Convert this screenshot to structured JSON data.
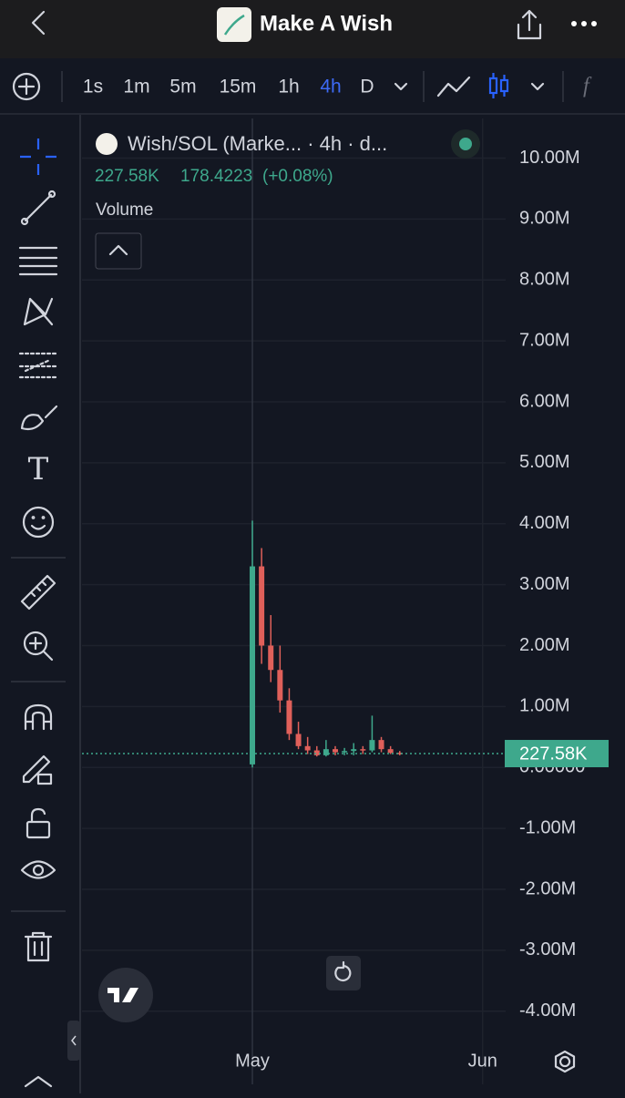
{
  "header": {
    "title": "Make A Wish"
  },
  "toolbar": {
    "intervals": [
      "1s",
      "1m",
      "5m",
      "15m",
      "1h",
      "4h",
      "D"
    ],
    "active_interval": 5
  },
  "chart_data": {
    "type": "candlestick",
    "title": "Wish/SOL (Marke... · 4h · d...",
    "legend": {
      "price": "227.58K",
      "change": "178.4223",
      "change_pct": "(+0.08%)"
    },
    "pane_label": "Volume",
    "categories": [
      null,
      null,
      null,
      null,
      null,
      null,
      null,
      null,
      null,
      null,
      null,
      null,
      null,
      null,
      null,
      null,
      null,
      null,
      "May",
      null,
      null,
      null,
      null,
      null,
      null,
      null,
      null,
      null,
      null,
      null,
      null,
      null,
      null,
      null,
      null,
      null,
      null,
      null,
      null,
      null,
      null,
      null,
      null,
      "Jun",
      null,
      null
    ],
    "open": [
      null,
      null,
      null,
      null,
      null,
      null,
      null,
      null,
      null,
      null,
      null,
      null,
      null,
      null,
      null,
      null,
      null,
      null,
      50000,
      3300000,
      2000000,
      1600000,
      1100000,
      550000,
      350000,
      280000,
      200000,
      300000,
      250000,
      270000,
      300000,
      280000,
      450000,
      300000,
      240000,
      null,
      null,
      null,
      null,
      null,
      null,
      null,
      null,
      null,
      null,
      null
    ],
    "high": [
      null,
      null,
      null,
      null,
      null,
      null,
      null,
      null,
      null,
      null,
      null,
      null,
      null,
      null,
      null,
      null,
      null,
      null,
      4050000,
      3600000,
      2500000,
      2000000,
      1300000,
      750000,
      500000,
      350000,
      450000,
      350000,
      320000,
      400000,
      350000,
      850000,
      500000,
      350000,
      270000,
      null,
      null,
      null,
      null,
      null,
      null,
      null,
      null,
      null,
      null,
      null
    ],
    "low": [
      null,
      null,
      null,
      null,
      null,
      null,
      null,
      null,
      null,
      null,
      null,
      null,
      null,
      null,
      null,
      null,
      null,
      null,
      0,
      1700000,
      1400000,
      900000,
      450000,
      300000,
      220000,
      180000,
      180000,
      200000,
      200000,
      200000,
      220000,
      250000,
      250000,
      220000,
      200000,
      null,
      null,
      null,
      null,
      null,
      null,
      null,
      null,
      null,
      null,
      null
    ],
    "close": [
      null,
      null,
      null,
      null,
      null,
      null,
      null,
      null,
      null,
      null,
      null,
      null,
      null,
      null,
      null,
      null,
      null,
      null,
      3300000,
      2000000,
      1600000,
      1100000,
      550000,
      350000,
      280000,
      200000,
      300000,
      250000,
      270000,
      300000,
      280000,
      450000,
      300000,
      240000,
      227580,
      null,
      null,
      null,
      null,
      null,
      null,
      null,
      null,
      null,
      null,
      null
    ],
    "up_color": "#3ea88c",
    "down_color": "#e0605a",
    "ylim": [
      -5200000,
      10650000
    ],
    "yticks": [
      {
        "value": 10000000,
        "label": "10.00M"
      },
      {
        "value": 9000000,
        "label": "9.00M"
      },
      {
        "value": 8000000,
        "label": "8.00M"
      },
      {
        "value": 7000000,
        "label": "7.00M"
      },
      {
        "value": 6000000,
        "label": "6.00M"
      },
      {
        "value": 5000000,
        "label": "5.00M"
      },
      {
        "value": 4000000,
        "label": "4.00M"
      },
      {
        "value": 3000000,
        "label": "3.00M"
      },
      {
        "value": 2000000,
        "label": "2.00M"
      },
      {
        "value": 1000000,
        "label": "1.00M"
      },
      {
        "value": 0,
        "label": "0.00000"
      },
      {
        "value": -1000000,
        "label": "-1.00M"
      },
      {
        "value": -2000000,
        "label": "-2.00M"
      },
      {
        "value": -3000000,
        "label": "-3.00M"
      },
      {
        "value": -4000000,
        "label": "-4.00M"
      }
    ],
    "last_price": {
      "value": 227580,
      "label": "227.58K"
    },
    "grid": true
  }
}
